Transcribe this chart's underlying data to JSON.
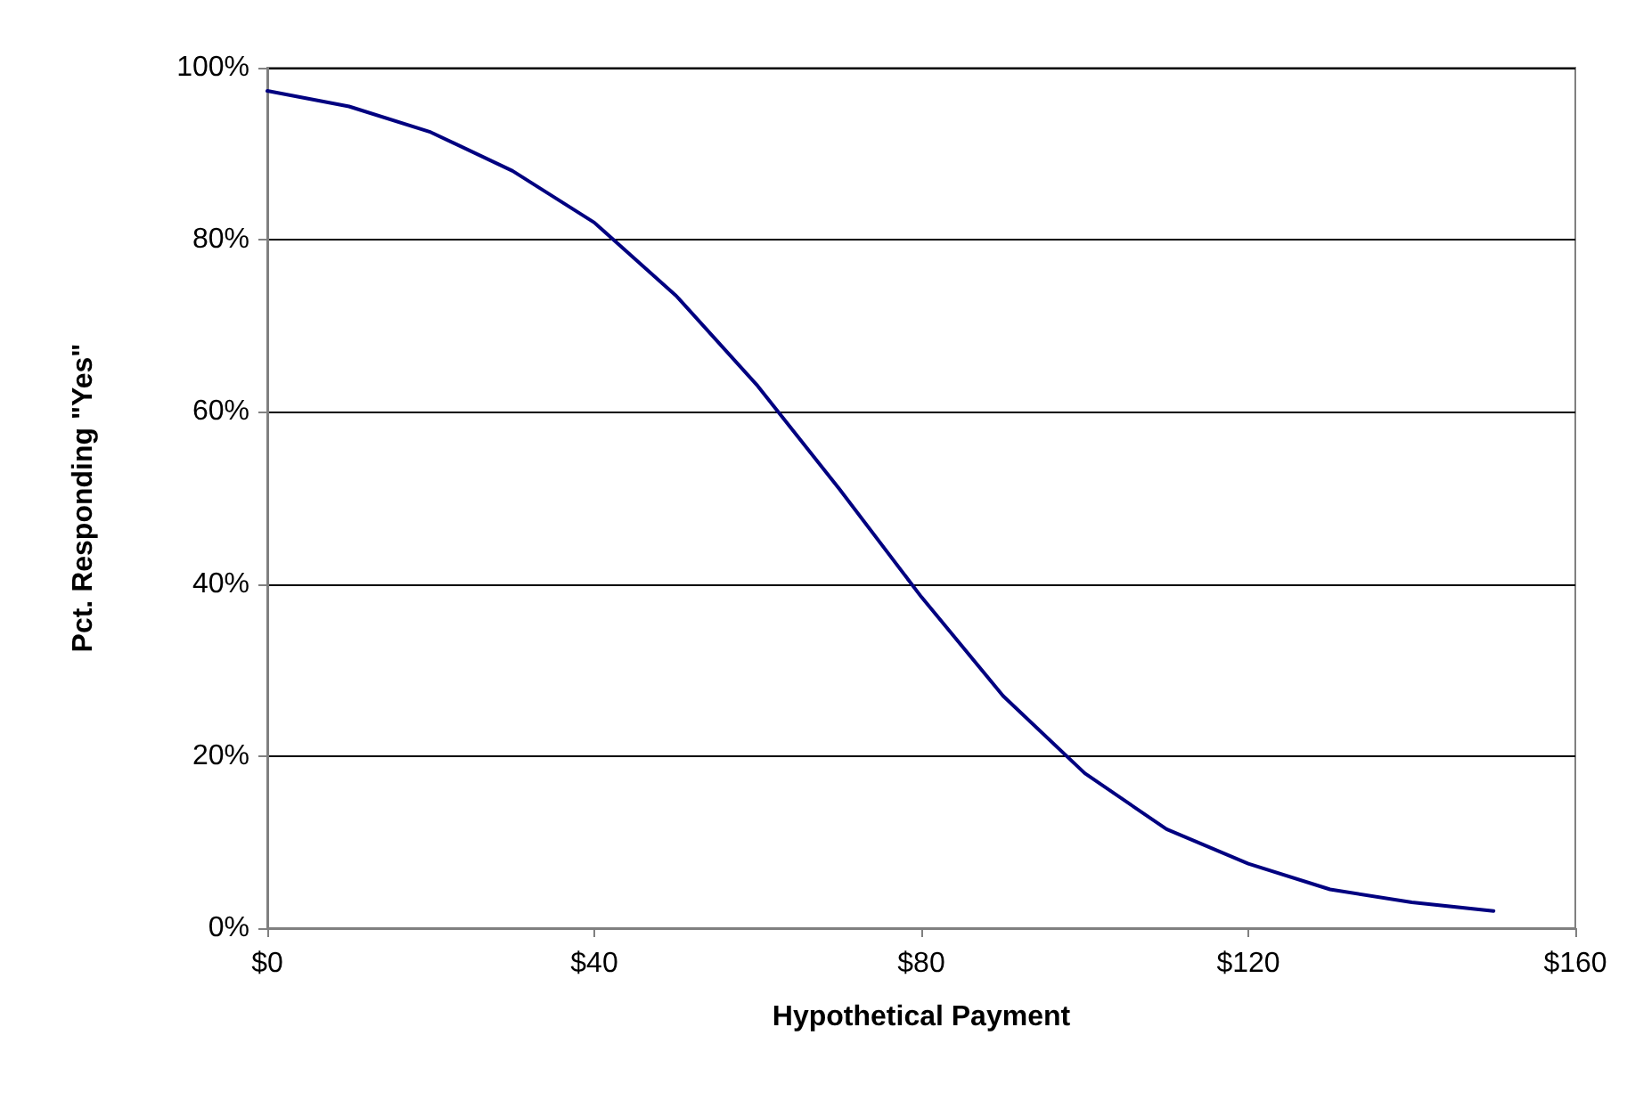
{
  "chart_data": {
    "type": "line",
    "xlabel": "Hypothetical Payment",
    "ylabel": "Pct. Responding \"Yes\"",
    "x": [
      0,
      10,
      20,
      30,
      40,
      50,
      60,
      70,
      80,
      90,
      100,
      110,
      120,
      130,
      140,
      150
    ],
    "series": [
      {
        "color": "#000080",
        "values": [
          0.973,
          0.955,
          0.925,
          0.88,
          0.82,
          0.735,
          0.63,
          0.51,
          0.385,
          0.27,
          0.18,
          0.115,
          0.075,
          0.045,
          0.03,
          0.02
        ]
      }
    ],
    "xlim": [
      0,
      160
    ],
    "xticks": [
      {
        "value": 0,
        "label": "$0"
      },
      {
        "value": 40,
        "label": "$40"
      },
      {
        "value": 80,
        "label": "$80"
      },
      {
        "value": 120,
        "label": "$120"
      },
      {
        "value": 160,
        "label": "$160"
      }
    ],
    "ylim": [
      0,
      1
    ],
    "yticks": [
      {
        "value": 0,
        "label": "0%"
      },
      {
        "value": 0.2,
        "label": "20%"
      },
      {
        "value": 0.4,
        "label": "40%"
      },
      {
        "value": 0.6,
        "label": "60%"
      },
      {
        "value": 0.8,
        "label": "80%"
      },
      {
        "value": 1,
        "label": "100%"
      }
    ],
    "grid": "y",
    "marker": "none",
    "line_style": "solid"
  }
}
